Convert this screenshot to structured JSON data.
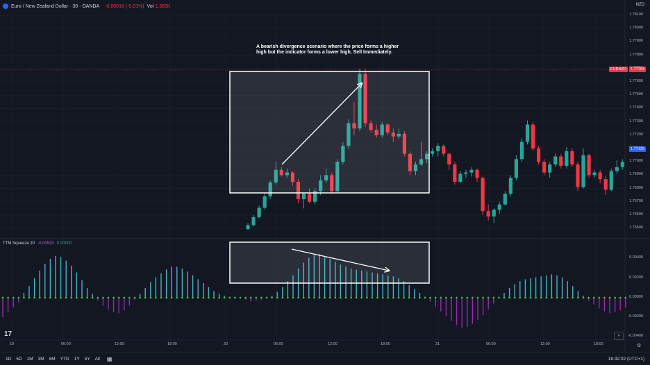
{
  "header": {
    "symbol": "Euro / New Zealand Dollar · 30 · OANDA",
    "change": "-0.00018 (-0.01%)",
    "vol_label": "Vol",
    "vol_value": "1.365K"
  },
  "currency": "NZD",
  "indicator": {
    "name": "TTM Squeeze 20",
    "value1": "-0.00520",
    "value2": "0.00000"
  },
  "price_axis": [
    "1.78100",
    "1.78000",
    "1.77900",
    "1.77800",
    "1.77700",
    "1.77600",
    "1.77500",
    "1.77400",
    "1.77300",
    "1.77200",
    "1.77100",
    "1.77000",
    "1.76900",
    "1.76800",
    "1.76700",
    "1.76600",
    "1.76500"
  ],
  "price_tag": "1.77764",
  "symbol_tag": "EURNZD",
  "cross_tag": "1.77126",
  "osc_axis": [
    "0.00400",
    "0.00200",
    "0.00000",
    "-0.00200",
    "-0.00400"
  ],
  "time_axis": [
    "19",
    "06:00",
    "12:00",
    "18:00",
    "20",
    "06:00",
    "12:00",
    "18:00",
    "21",
    "06:00",
    "12:00",
    "18:00"
  ],
  "annotation": "A bearish divergence scenario where the price forms a higher high but the indicator forms a lower high. Sell Immediately.",
  "bottom_bar": {
    "timeframes": [
      "1D",
      "5D",
      "1M",
      "3M",
      "6M",
      "YTD",
      "1Y",
      "5Y",
      "All"
    ],
    "clock": "18:32:02 (UTC+1)"
  },
  "colors": {
    "up": "#26a69a",
    "down": "#f23645",
    "bg": "#131722",
    "osc_up": "#46b3c9",
    "osc_down": "#9c27b0"
  },
  "chart_data": {
    "type": "candlestick",
    "candles": [
      [
        1.76495,
        1.7654,
        1.7649,
        1.76525
      ],
      [
        1.76525,
        1.766,
        1.76515,
        1.76585
      ],
      [
        1.76585,
        1.7667,
        1.76575,
        1.76655
      ],
      [
        1.76655,
        1.7676,
        1.7664,
        1.7674
      ],
      [
        1.7674,
        1.7686,
        1.7672,
        1.76845
      ],
      [
        1.76845,
        1.77,
        1.7683,
        1.7694
      ],
      [
        1.7694,
        1.7696,
        1.7689,
        1.769
      ],
      [
        1.769,
        1.7695,
        1.7688,
        1.7692
      ],
      [
        1.7692,
        1.7693,
        1.7682,
        1.7685
      ],
      [
        1.7685,
        1.7687,
        1.7669,
        1.7672
      ],
      [
        1.7672,
        1.7677,
        1.7665,
        1.7676
      ],
      [
        1.7676,
        1.768,
        1.7669,
        1.767
      ],
      [
        1.767,
        1.768,
        1.7668,
        1.7678
      ],
      [
        1.7678,
        1.769,
        1.7675,
        1.7686
      ],
      [
        1.7686,
        1.7695,
        1.7684,
        1.769
      ],
      [
        1.769,
        1.7692,
        1.7676,
        1.7678
      ],
      [
        1.7678,
        1.7702,
        1.7677,
        1.77
      ],
      [
        1.77,
        1.7715,
        1.7698,
        1.7712
      ],
      [
        1.7712,
        1.7732,
        1.771,
        1.7729
      ],
      [
        1.7729,
        1.7745,
        1.772,
        1.7725
      ],
      [
        1.7725,
        1.777,
        1.7723,
        1.7766
      ],
      [
        1.7766,
        1.777,
        1.7726,
        1.7729
      ],
      [
        1.7729,
        1.7731,
        1.7722,
        1.7724
      ],
      [
        1.7724,
        1.7728,
        1.7718,
        1.772
      ],
      [
        1.772,
        1.773,
        1.7718,
        1.7728
      ],
      [
        1.7728,
        1.7729,
        1.772,
        1.7722
      ],
      [
        1.7722,
        1.7725,
        1.7715,
        1.7719
      ],
      [
        1.7719,
        1.7725,
        1.7717,
        1.7721
      ],
      [
        1.7721,
        1.7723,
        1.7704,
        1.7706
      ],
      [
        1.7706,
        1.7708,
        1.769,
        1.7693
      ],
      [
        1.7693,
        1.77,
        1.769,
        1.7698
      ],
      [
        1.7698,
        1.7715,
        1.7697,
        1.7702
      ],
      [
        1.7702,
        1.7708,
        1.7699,
        1.7706
      ],
      [
        1.7706,
        1.771,
        1.7704,
        1.7708
      ],
      [
        1.7708,
        1.7714,
        1.7704,
        1.7712
      ],
      [
        1.7712,
        1.7713,
        1.7704,
        1.7706
      ],
      [
        1.7706,
        1.7707,
        1.7694,
        1.7698
      ],
      [
        1.7698,
        1.77,
        1.7683,
        1.7685
      ],
      [
        1.7685,
        1.7693,
        1.7684,
        1.7691
      ],
      [
        1.7691,
        1.7694,
        1.7688,
        1.7692
      ],
      [
        1.7692,
        1.7696,
        1.7689,
        1.7694
      ],
      [
        1.7694,
        1.7695,
        1.7685,
        1.7688
      ],
      [
        1.7688,
        1.7689,
        1.766,
        1.7663
      ],
      [
        1.7663,
        1.7668,
        1.7656,
        1.7659
      ],
      [
        1.7659,
        1.7665,
        1.7654,
        1.7664
      ],
      [
        1.7664,
        1.767,
        1.7661,
        1.7668
      ],
      [
        1.7668,
        1.7678,
        1.7667,
        1.7676
      ],
      [
        1.7676,
        1.769,
        1.7674,
        1.7688
      ],
      [
        1.7688,
        1.7705,
        1.7686,
        1.7702
      ],
      [
        1.7702,
        1.7718,
        1.77,
        1.7715
      ],
      [
        1.7715,
        1.7731,
        1.7713,
        1.7728
      ],
      [
        1.7728,
        1.773,
        1.7708,
        1.771
      ],
      [
        1.771,
        1.7712,
        1.7698,
        1.77
      ],
      [
        1.77,
        1.7702,
        1.769,
        1.7692
      ],
      [
        1.7692,
        1.77,
        1.7688,
        1.7698
      ],
      [
        1.7698,
        1.7706,
        1.7696,
        1.7704
      ],
      [
        1.7704,
        1.7706,
        1.7695,
        1.7697
      ],
      [
        1.7697,
        1.7711,
        1.7695,
        1.7708
      ],
      [
        1.7708,
        1.771,
        1.7696,
        1.7698
      ],
      [
        1.7698,
        1.77,
        1.7678,
        1.7681
      ],
      [
        1.7681,
        1.771,
        1.768,
        1.7705
      ],
      [
        1.7705,
        1.7706,
        1.7688,
        1.769
      ],
      [
        1.769,
        1.7694,
        1.7688,
        1.7692
      ],
      [
        1.7692,
        1.7694,
        1.7684,
        1.7687
      ],
      [
        1.7687,
        1.7689,
        1.7675,
        1.7679
      ],
      [
        1.7679,
        1.7695,
        1.7678,
        1.7693
      ],
      [
        1.7693,
        1.7701,
        1.7691,
        1.7696
      ],
      [
        1.7696,
        1.7702,
        1.7694,
        1.77
      ]
    ],
    "oscillator": [
      -0.002,
      -0.0015,
      -0.001,
      -0.0005,
      0.0005,
      0.0012,
      0.002,
      0.0028,
      0.0035,
      0.004,
      0.0043,
      0.0042,
      0.0038,
      0.0033,
      0.0026,
      0.0018,
      0.001,
      0.0004,
      -0.0003,
      -0.0008,
      -0.0012,
      -0.0015,
      -0.0016,
      -0.0013,
      -0.0008,
      -0.0002,
      0.0004,
      0.001,
      0.0016,
      0.0021,
      0.0025,
      0.0029,
      0.0032,
      0.0032,
      0.003,
      0.0027,
      0.0023,
      0.0019,
      0.0015,
      0.0011,
      0.0007,
      0.0004,
      0.0002,
      0.0001,
      0.0,
      -0.0001,
      -0.0002,
      -0.0004,
      -0.0003,
      -0.0002,
      -0.0001,
      0.0002,
      0.0006,
      0.0011,
      0.0017,
      0.0023,
      0.003,
      0.0036,
      0.0041,
      0.0044,
      0.0045,
      0.0043,
      0.004,
      0.0037,
      0.0034,
      0.0032,
      0.003,
      0.0029,
      0.0028,
      0.0027,
      0.0026,
      0.0025,
      0.0024,
      0.0023,
      0.0022,
      0.002,
      0.0017,
      0.0013,
      0.0009,
      0.0005,
      0.0001,
      -0.0004,
      -0.0009,
      -0.0014,
      -0.0019,
      -0.0024,
      -0.0028,
      -0.0031,
      -0.003,
      -0.0027,
      -0.0023,
      -0.0018,
      -0.0012,
      -0.0006,
      0.0,
      0.0005,
      0.001,
      0.0014,
      0.0017,
      0.0019,
      0.002,
      0.0021,
      0.0022,
      0.0023,
      0.0024,
      0.0023,
      0.0021,
      0.0017,
      0.0012,
      0.0007,
      0.0002,
      -0.0003,
      -0.0007,
      -0.0011,
      -0.0014,
      -0.0016,
      -0.0015,
      -0.0013,
      -0.001
    ]
  }
}
